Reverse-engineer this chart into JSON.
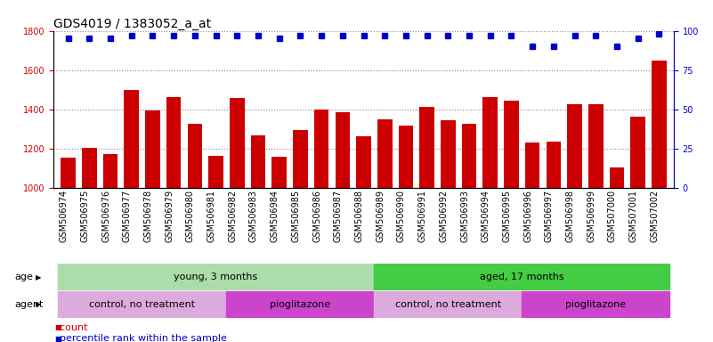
{
  "title": "GDS4019 / 1383052_a_at",
  "samples": [
    "GSM506974",
    "GSM506975",
    "GSM506976",
    "GSM506977",
    "GSM506978",
    "GSM506979",
    "GSM506980",
    "GSM506981",
    "GSM506982",
    "GSM506983",
    "GSM506984",
    "GSM506985",
    "GSM506986",
    "GSM506987",
    "GSM506988",
    "GSM506989",
    "GSM506990",
    "GSM506991",
    "GSM506992",
    "GSM506993",
    "GSM506994",
    "GSM506995",
    "GSM506996",
    "GSM506997",
    "GSM506998",
    "GSM506999",
    "GSM507000",
    "GSM507001",
    "GSM507002"
  ],
  "bar_values": [
    1155,
    1205,
    1175,
    1500,
    1395,
    1465,
    1325,
    1165,
    1460,
    1270,
    1160,
    1295,
    1400,
    1385,
    1265,
    1350,
    1320,
    1415,
    1345,
    1325,
    1465,
    1445,
    1230,
    1235,
    1425,
    1425,
    1105,
    1365,
    1650
  ],
  "percentile_values": [
    95,
    95,
    95,
    97,
    97,
    97,
    97,
    97,
    97,
    97,
    95,
    97,
    97,
    97,
    97,
    97,
    97,
    97,
    97,
    97,
    97,
    97,
    90,
    90,
    97,
    97,
    90,
    95,
    98
  ],
  "bar_color": "#cc0000",
  "dot_color": "#0000cc",
  "ylim_left": [
    1000,
    1800
  ],
  "ylim_right": [
    0,
    100
  ],
  "yticks_left": [
    1000,
    1200,
    1400,
    1600,
    1800
  ],
  "yticks_right": [
    0,
    25,
    50,
    75,
    100
  ],
  "grid_color": "#888888",
  "age_groups": [
    {
      "label": "young, 3 months",
      "start": 0,
      "end": 15,
      "color": "#aaddaa"
    },
    {
      "label": "aged, 17 months",
      "start": 15,
      "end": 29,
      "color": "#44cc44"
    }
  ],
  "agent_groups": [
    {
      "label": "control, no treatment",
      "start": 0,
      "end": 8,
      "color": "#ddaadd"
    },
    {
      "label": "pioglitazone",
      "start": 8,
      "end": 15,
      "color": "#cc44cc"
    },
    {
      "label": "control, no treatment",
      "start": 15,
      "end": 22,
      "color": "#ddaadd"
    },
    {
      "label": "pioglitazone",
      "start": 22,
      "end": 29,
      "color": "#cc44cc"
    }
  ],
  "strip_color": "#c0c0c0",
  "legend_count_color": "#cc0000",
  "legend_dot_color": "#0000cc",
  "title_fontsize": 10,
  "tick_fontsize": 7,
  "annot_fontsize": 8,
  "legend_fontsize": 8
}
